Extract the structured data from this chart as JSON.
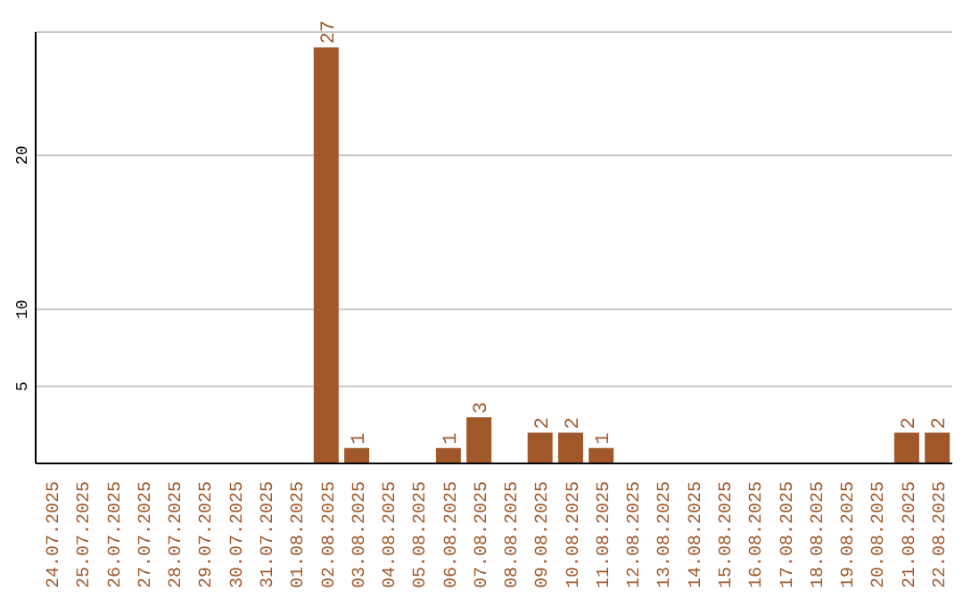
{
  "chart_data": {
    "type": "bar",
    "categories": [
      "24.07.2025",
      "25.07.2025",
      "26.07.2025",
      "27.07.2025",
      "28.07.2025",
      "29.07.2025",
      "30.07.2025",
      "31.07.2025",
      "01.08.2025",
      "02.08.2025",
      "03.08.2025",
      "04.08.2025",
      "05.08.2025",
      "06.08.2025",
      "07.08.2025",
      "08.08.2025",
      "09.08.2025",
      "10.08.2025",
      "11.08.2025",
      "12.08.2025",
      "13.08.2025",
      "14.08.2025",
      "15.08.2025",
      "16.08.2025",
      "17.08.2025",
      "18.08.2025",
      "19.08.2025",
      "20.08.2025",
      "21.08.2025",
      "22.08.2025"
    ],
    "values": [
      0,
      0,
      0,
      0,
      0,
      0,
      0,
      0,
      0,
      27,
      1,
      0,
      0,
      1,
      3,
      0,
      2,
      2,
      1,
      0,
      0,
      0,
      0,
      0,
      0,
      0,
      0,
      0,
      2,
      2
    ],
    "value_labels": [
      null,
      null,
      null,
      null,
      null,
      null,
      null,
      null,
      null,
      "27",
      "1",
      null,
      null,
      "1",
      "3",
      null,
      "2",
      "2",
      "1",
      null,
      null,
      null,
      null,
      null,
      null,
      null,
      null,
      null,
      "2",
      "2"
    ],
    "color": "#a0582a",
    "ylim": [
      0,
      28
    ],
    "yticks": [
      5,
      10,
      20
    ],
    "grid": "y"
  }
}
